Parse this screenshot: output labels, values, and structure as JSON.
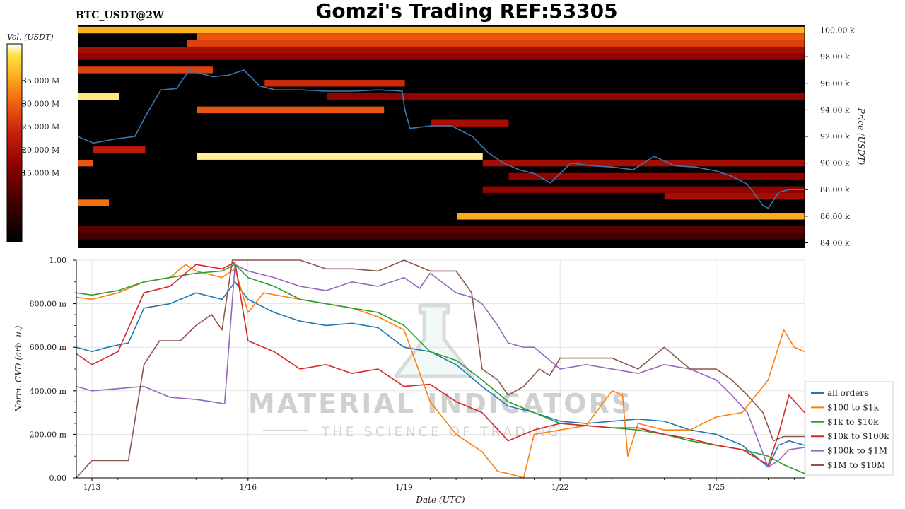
{
  "header": {
    "pair": "BTC_USDT@2W",
    "title": "Gomzi's Trading REF:53305"
  },
  "watermark": {
    "brand": "MATERIAL INDICATORS",
    "tagline": "THE SCIENCE OF TRADING"
  },
  "chart_data": [
    {
      "type": "heatmap",
      "colorbar_label": "Vol. (USDT)",
      "colorbar_ticks": [
        "35.000 M",
        "30.000 M",
        "25.000 M",
        "20.000 M",
        "15.000 M"
      ],
      "colorbar_values": [
        35,
        30,
        25,
        20,
        15
      ],
      "colorbar_range": [
        0,
        43
      ],
      "ylabel": "Price (USDT)",
      "y_ticks": [
        "100.00 k",
        "98.00 k",
        "96.00 k",
        "94.00 k",
        "92.00 k",
        "90.00 k",
        "88.00 k",
        "86.00 k",
        "84.00 k"
      ],
      "y_tick_values": [
        100,
        98,
        96,
        94,
        92,
        90,
        88,
        86,
        84
      ],
      "ylim": [
        83.6,
        100.4
      ],
      "xlim": [
        12.7,
        26.7
      ],
      "colors": [
        "#000000",
        "#3a0000",
        "#8b0000",
        "#c8200a",
        "#f06010",
        "#ffb020",
        "#ffe040",
        "#ffffff"
      ],
      "bands": [
        {
          "price": 100.0,
          "start": 12.7,
          "end": 26.7,
          "level": 0.72
        },
        {
          "price": 99.5,
          "start": 15.0,
          "end": 26.7,
          "level": 0.55
        },
        {
          "price": 99.0,
          "start": 14.8,
          "end": 26.7,
          "level": 0.5
        },
        {
          "price": 98.5,
          "start": 12.7,
          "end": 26.7,
          "level": 0.35
        },
        {
          "price": 98.0,
          "start": 12.7,
          "end": 26.7,
          "level": 0.3
        },
        {
          "price": 97.0,
          "start": 12.7,
          "end": 15.3,
          "level": 0.5
        },
        {
          "price": 96.0,
          "start": 16.3,
          "end": 19.0,
          "level": 0.45
        },
        {
          "price": 95.0,
          "start": 12.7,
          "end": 13.5,
          "level": 0.9
        },
        {
          "price": 95.0,
          "start": 17.5,
          "end": 26.7,
          "level": 0.3
        },
        {
          "price": 94.0,
          "start": 15.0,
          "end": 18.6,
          "level": 0.55
        },
        {
          "price": 93.0,
          "start": 19.5,
          "end": 21.0,
          "level": 0.35
        },
        {
          "price": 91.0,
          "start": 13.0,
          "end": 14.0,
          "level": 0.4
        },
        {
          "price": 90.5,
          "start": 15.0,
          "end": 20.5,
          "level": 0.92
        },
        {
          "price": 90.0,
          "start": 12.7,
          "end": 13.0,
          "level": 0.55
        },
        {
          "price": 90.0,
          "start": 20.5,
          "end": 26.7,
          "level": 0.35
        },
        {
          "price": 89.0,
          "start": 21.0,
          "end": 26.7,
          "level": 0.3
        },
        {
          "price": 88.0,
          "start": 20.5,
          "end": 26.7,
          "level": 0.3
        },
        {
          "price": 87.0,
          "start": 12.7,
          "end": 13.3,
          "level": 0.6
        },
        {
          "price": 87.5,
          "start": 24.0,
          "end": 26.7,
          "level": 0.35
        },
        {
          "price": 86.0,
          "start": 20.0,
          "end": 26.7,
          "level": 0.7
        },
        {
          "price": 85.0,
          "start": 12.7,
          "end": 26.7,
          "level": 0.2
        },
        {
          "price": 84.5,
          "start": 12.7,
          "end": 26.7,
          "level": 0.15
        }
      ],
      "price_series": {
        "x": [
          12.7,
          13.0,
          13.4,
          13.8,
          14.0,
          14.3,
          14.6,
          14.85,
          15.0,
          15.3,
          15.6,
          15.9,
          16.2,
          16.5,
          17.0,
          17.5,
          18.0,
          18.5,
          18.95,
          19.0,
          19.1,
          19.5,
          19.9,
          20.3,
          20.6,
          20.9,
          21.2,
          21.5,
          21.8,
          22.2,
          22.6,
          23.0,
          23.4,
          23.8,
          24.2,
          24.6,
          25.0,
          25.3,
          25.6,
          25.9,
          26.0,
          26.2,
          26.4,
          26.7
        ],
        "y": [
          92.0,
          91.5,
          91.8,
          92.0,
          93.5,
          95.5,
          95.6,
          97.0,
          96.8,
          96.5,
          96.6,
          97.0,
          95.8,
          95.5,
          95.5,
          95.4,
          95.4,
          95.5,
          95.4,
          94.0,
          92.6,
          92.8,
          92.8,
          92.0,
          90.8,
          90.0,
          89.5,
          89.2,
          88.5,
          90.0,
          89.8,
          89.7,
          89.5,
          90.5,
          89.8,
          89.7,
          89.4,
          89.0,
          88.4,
          86.8,
          86.6,
          87.8,
          88.0,
          88.0
        ],
        "color": "#3a78b0"
      }
    },
    {
      "type": "line",
      "xlabel": "Date (UTC)",
      "ylabel": "Norm. CVD (arb. u.)",
      "x_ticks": [
        "1/13",
        "1/16",
        "1/19",
        "1/22",
        "1/25"
      ],
      "x_tick_values": [
        13,
        16,
        19,
        22,
        25
      ],
      "y_ticks": [
        "1.00",
        "800.00 m",
        "600.00 m",
        "400.00 m",
        "200.00 m",
        "0.00"
      ],
      "y_tick_values": [
        1.0,
        0.8,
        0.6,
        0.4,
        0.2,
        0.0
      ],
      "xlim": [
        12.7,
        26.7
      ],
      "ylim": [
        0,
        1.0
      ],
      "grid": true,
      "legend_position": "lower-right",
      "series": [
        {
          "name": "all orders",
          "color": "#1f77b4",
          "x": [
            12.7,
            13.0,
            13.3,
            13.7,
            14.0,
            14.5,
            15.0,
            15.5,
            15.75,
            16.0,
            16.5,
            17.0,
            17.5,
            18.0,
            18.5,
            19.0,
            19.5,
            20.0,
            20.5,
            21.0,
            21.5,
            22.0,
            22.5,
            23.0,
            23.5,
            24.0,
            24.5,
            25.0,
            25.5,
            26.0,
            26.2,
            26.4,
            26.7
          ],
          "y": [
            0.6,
            0.58,
            0.6,
            0.62,
            0.78,
            0.8,
            0.85,
            0.82,
            0.9,
            0.82,
            0.76,
            0.72,
            0.7,
            0.71,
            0.69,
            0.6,
            0.58,
            0.52,
            0.42,
            0.33,
            0.3,
            0.26,
            0.25,
            0.26,
            0.27,
            0.26,
            0.22,
            0.2,
            0.15,
            0.05,
            0.15,
            0.17,
            0.15
          ]
        },
        {
          "name": "$100 to $1k",
          "color": "#ff7f0e",
          "x": [
            12.7,
            13.0,
            13.5,
            14.0,
            14.5,
            14.8,
            15.0,
            15.5,
            15.75,
            16.0,
            16.3,
            17.0,
            17.5,
            18.0,
            18.5,
            19.0,
            19.5,
            20.0,
            20.5,
            20.8,
            21.0,
            21.3,
            21.5,
            22.0,
            22.5,
            23.0,
            23.2,
            23.3,
            23.5,
            24.0,
            24.5,
            25.0,
            25.5,
            26.0,
            26.3,
            26.5,
            26.7
          ],
          "y": [
            0.83,
            0.82,
            0.85,
            0.9,
            0.92,
            0.98,
            0.95,
            0.92,
            0.96,
            0.76,
            0.85,
            0.82,
            0.8,
            0.78,
            0.74,
            0.68,
            0.35,
            0.2,
            0.12,
            0.03,
            0.02,
            0.0,
            0.2,
            0.22,
            0.24,
            0.4,
            0.38,
            0.1,
            0.25,
            0.22,
            0.22,
            0.28,
            0.3,
            0.45,
            0.68,
            0.6,
            0.58
          ]
        },
        {
          "name": "$1k to $10k",
          "color": "#2ca02c",
          "x": [
            12.7,
            13.0,
            13.5,
            14.0,
            14.5,
            15.0,
            15.5,
            15.75,
            16.0,
            16.5,
            17.0,
            17.5,
            18.0,
            18.5,
            19.0,
            19.5,
            20.0,
            20.5,
            21.0,
            21.5,
            22.0,
            22.5,
            23.0,
            23.5,
            24.0,
            24.5,
            25.0,
            25.5,
            26.0,
            26.3,
            26.7
          ],
          "y": [
            0.85,
            0.84,
            0.86,
            0.9,
            0.92,
            0.94,
            0.95,
            0.98,
            0.92,
            0.88,
            0.82,
            0.8,
            0.78,
            0.76,
            0.7,
            0.58,
            0.54,
            0.45,
            0.35,
            0.3,
            0.25,
            0.24,
            0.23,
            0.22,
            0.2,
            0.17,
            0.15,
            0.13,
            0.1,
            0.06,
            0.02
          ]
        },
        {
          "name": "$10k to $100k",
          "color": "#d62728",
          "x": [
            12.7,
            13.0,
            13.5,
            14.0,
            14.5,
            15.0,
            15.5,
            15.75,
            16.0,
            16.5,
            17.0,
            17.5,
            18.0,
            18.5,
            19.0,
            19.5,
            20.0,
            20.5,
            21.0,
            21.5,
            22.0,
            22.5,
            23.0,
            23.5,
            24.0,
            24.5,
            25.0,
            25.5,
            26.0,
            26.2,
            26.4,
            26.7
          ],
          "y": [
            0.57,
            0.52,
            0.58,
            0.85,
            0.88,
            0.98,
            0.96,
            0.99,
            0.63,
            0.58,
            0.5,
            0.52,
            0.48,
            0.5,
            0.42,
            0.43,
            0.35,
            0.3,
            0.17,
            0.22,
            0.25,
            0.24,
            0.23,
            0.23,
            0.2,
            0.18,
            0.15,
            0.13,
            0.06,
            0.2,
            0.38,
            0.3
          ]
        },
        {
          "name": "$100k to $1M",
          "color": "#9467bd",
          "x": [
            12.7,
            13.0,
            13.5,
            14.0,
            14.5,
            15.0,
            15.3,
            15.55,
            15.75,
            16.0,
            16.5,
            17.0,
            17.5,
            18.0,
            18.5,
            19.0,
            19.3,
            19.5,
            20.0,
            20.3,
            20.5,
            20.8,
            21.0,
            21.3,
            21.5,
            22.0,
            22.5,
            23.0,
            23.5,
            24.0,
            24.5,
            25.0,
            25.3,
            25.6,
            26.0,
            26.2,
            26.4,
            26.7
          ],
          "y": [
            0.42,
            0.4,
            0.41,
            0.42,
            0.37,
            0.36,
            0.35,
            0.34,
            0.98,
            0.95,
            0.92,
            0.88,
            0.86,
            0.9,
            0.88,
            0.92,
            0.87,
            0.94,
            0.85,
            0.83,
            0.8,
            0.7,
            0.62,
            0.6,
            0.6,
            0.5,
            0.52,
            0.5,
            0.48,
            0.52,
            0.5,
            0.45,
            0.38,
            0.3,
            0.05,
            0.08,
            0.13,
            0.14
          ]
        },
        {
          "name": "$1M to $10M",
          "color": "#8c564b",
          "x": [
            12.7,
            13.0,
            13.3,
            13.7,
            14.0,
            14.3,
            14.7,
            15.0,
            15.3,
            15.5,
            15.7,
            15.9,
            16.0,
            16.5,
            17.0,
            17.5,
            18.0,
            18.5,
            19.0,
            19.5,
            20.0,
            20.3,
            20.5,
            20.8,
            21.0,
            21.3,
            21.6,
            21.8,
            22.0,
            22.5,
            23.0,
            23.5,
            24.0,
            24.5,
            25.0,
            25.3,
            25.6,
            25.9,
            26.1,
            26.3,
            26.5,
            26.7
          ],
          "y": [
            0.0,
            0.08,
            0.08,
            0.08,
            0.52,
            0.63,
            0.63,
            0.7,
            0.75,
            0.68,
            1.0,
            1.0,
            1.0,
            1.0,
            1.0,
            0.96,
            0.96,
            0.95,
            1.0,
            0.95,
            0.95,
            0.85,
            0.5,
            0.45,
            0.38,
            0.42,
            0.5,
            0.47,
            0.55,
            0.55,
            0.55,
            0.5,
            0.6,
            0.5,
            0.5,
            0.45,
            0.38,
            0.3,
            0.17,
            0.19,
            0.19,
            0.19
          ]
        }
      ]
    }
  ]
}
